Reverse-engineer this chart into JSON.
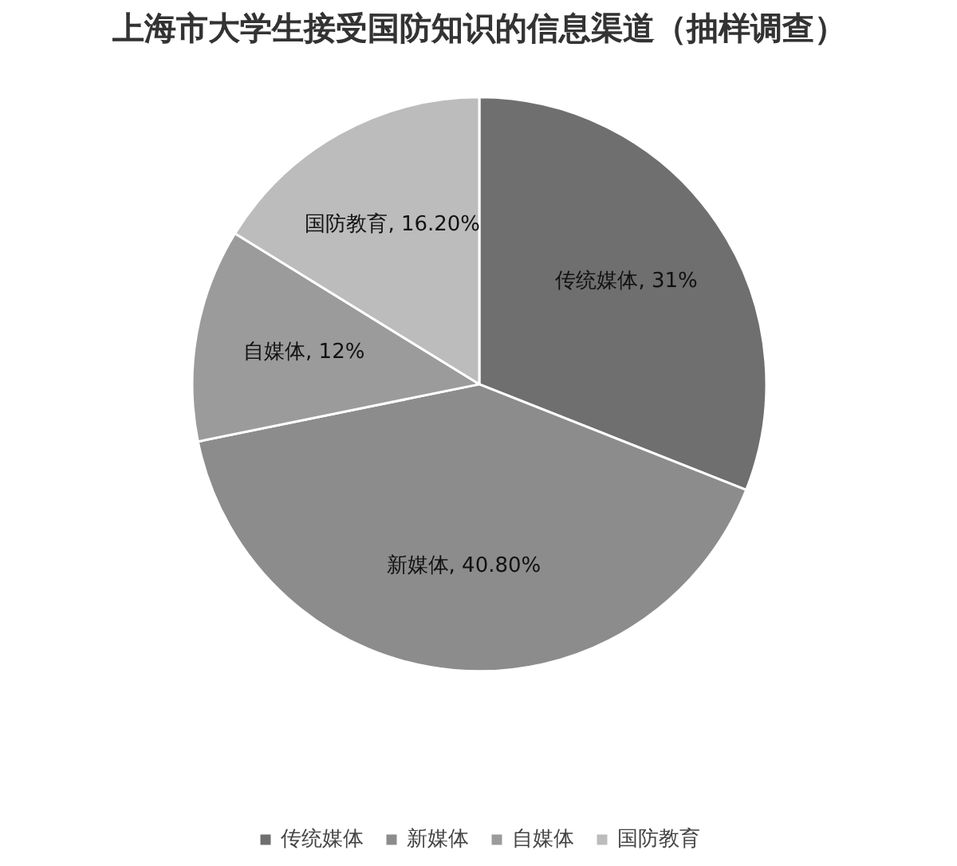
{
  "chart_data": {
    "type": "pie",
    "title": "上海市大学生接受国防知识的信息渠道（抽样调查）",
    "categories": [
      "传统媒体",
      "新媒体",
      "自媒体",
      "国防教育"
    ],
    "values": [
      31,
      40.8,
      12,
      16.2
    ],
    "colors": [
      "#6f6f6f",
      "#8c8c8c",
      "#9b9b9b",
      "#bcbcbc"
    ],
    "value_labels": [
      "传统媒体, 31%",
      "新媒体, 40.80%",
      "自媒体, 12%",
      "国防教育, 16.20%"
    ],
    "legend": "bottom"
  }
}
